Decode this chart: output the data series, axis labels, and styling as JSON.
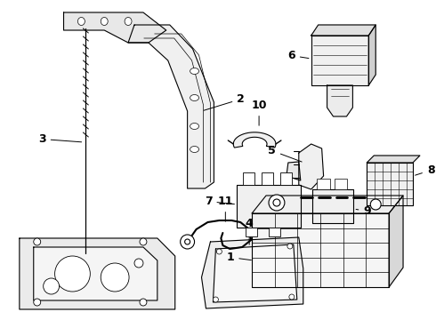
{
  "background_color": "#ffffff",
  "line_color": "#000000",
  "line_width": 0.8
}
